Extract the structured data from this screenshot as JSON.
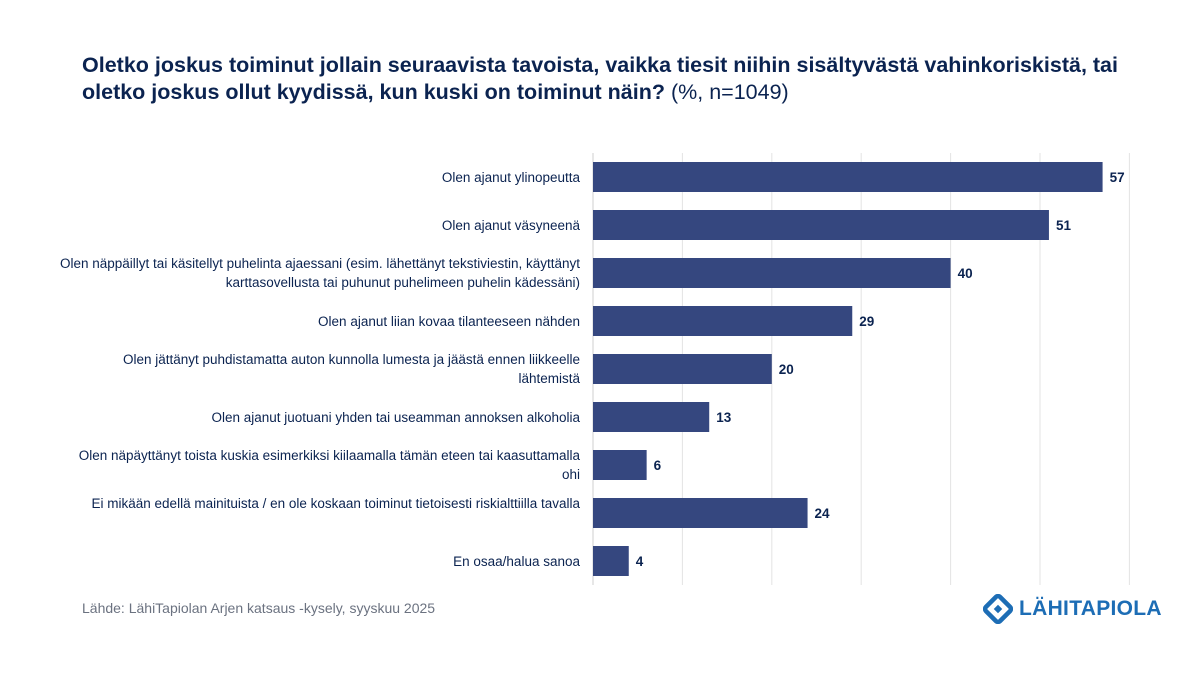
{
  "title": {
    "main": "Oletko joskus toiminut jollain seuraavista tavoista, vaikka tiesit niihin sisältyvästä vahinkoriskistä, tai oletko joskus ollut kyydissä, kun kuski on toiminut näin?",
    "suffix": "(%, n=1049)"
  },
  "source": "Lähde: LähiTapiolan Arjen katsaus -kysely, syyskuu 2025",
  "logo": {
    "text": "LÄHITAPIOLA",
    "color": "#1d6db5"
  },
  "colors": {
    "bar": "#35477f",
    "grid": "#e3e3e3",
    "text": "#0b2350"
  },
  "chart_data": {
    "type": "bar",
    "orientation": "horizontal",
    "title": "Oletko joskus toiminut jollain seuraavista tavoista, vaikka tiesit niihin sisältyvästä vahinkoriskistä, tai oletko joskus ollut kyydissä, kun kuski on toiminut näin? (%, n=1049)",
    "categories": [
      "Olen ajanut ylinopeutta",
      "Olen ajanut väsyneenä",
      "Olen näppäillyt tai käsitellyt puhelinta ajaessani (esim. lähettänyt tekstiviestin, käyttänyt karttasovellusta tai puhunut puhelimeen puhelin kädessäni)",
      "Olen ajanut liian kovaa tilanteeseen nähden",
      "Olen jättänyt puhdistamatta auton kunnolla lumesta ja jäästä ennen liikkeelle lähtemistä",
      "Olen ajanut juotuani yhden tai useamman annoksen alkoholia",
      "Olen näpäyttänyt toista kuskia esimerkiksi kiilaamalla tämän eteen tai kaasuttamalla ohi",
      "Ei mikään edellä mainituista / en ole koskaan toiminut tietoisesti riskialttiilla tavalla",
      "En osaa/halua sanoa"
    ],
    "values": [
      57,
      51,
      40,
      29,
      20,
      13,
      6,
      24,
      4
    ],
    "xlim": [
      0,
      60
    ],
    "grid": true,
    "xlabel": "",
    "ylabel": ""
  }
}
